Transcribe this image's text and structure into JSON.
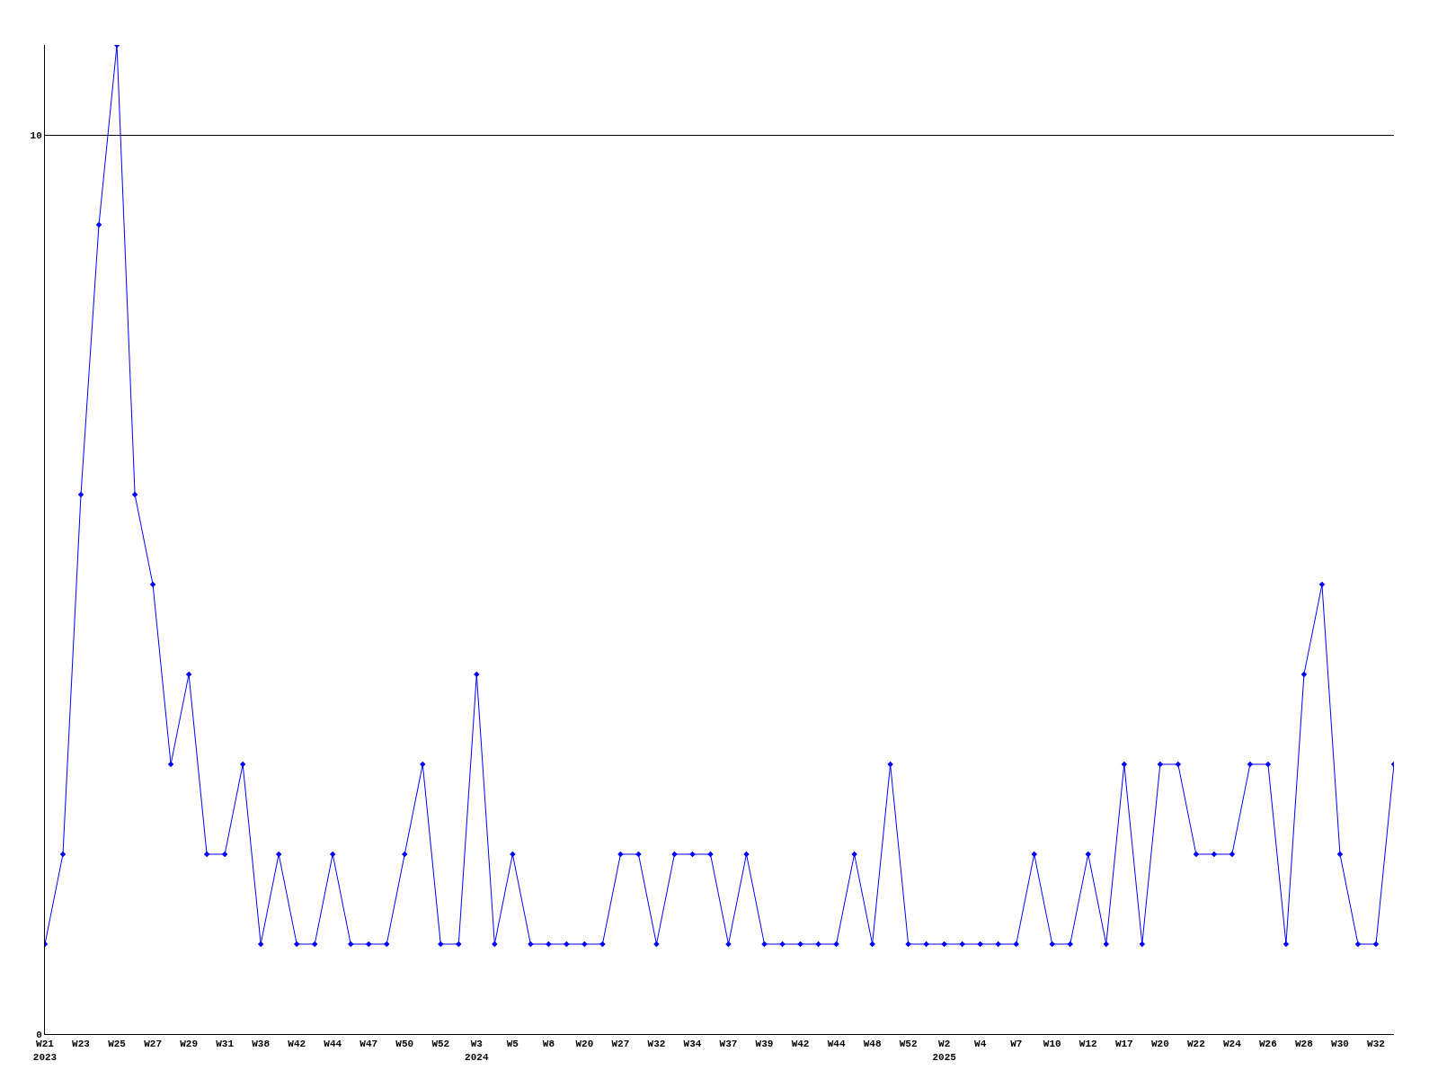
{
  "chart_data": {
    "type": "line",
    "categories": [
      "W21\n2023",
      null,
      "W23",
      null,
      "W25",
      null,
      "W27",
      null,
      "W29",
      null,
      "W31",
      null,
      "W38",
      null,
      "W42",
      null,
      "W44",
      null,
      "W47",
      null,
      "W50",
      null,
      "W52",
      null,
      "W3\n2024",
      null,
      "W5",
      null,
      "W8",
      null,
      "W20",
      null,
      "W27",
      null,
      "W32",
      null,
      "W34",
      null,
      "W37",
      null,
      "W39",
      null,
      "W42",
      null,
      "W44",
      null,
      "W48",
      null,
      "W52",
      null,
      "W2\n2025",
      null,
      "W4",
      null,
      "W7",
      null,
      "W10",
      null,
      "W12",
      null,
      "W17",
      null,
      "W20",
      null,
      "W22",
      null,
      "W24",
      null,
      "W26",
      null,
      "W28",
      null,
      "W30",
      null,
      "W32",
      null
    ],
    "series": [
      {
        "color": "#0000ff",
        "values": [
          1,
          2,
          6,
          9,
          11,
          6,
          5,
          3,
          4,
          2,
          2,
          3,
          1,
          2,
          1,
          1,
          2,
          1,
          1,
          1,
          2,
          3,
          1,
          1,
          4,
          1,
          2,
          1,
          1,
          1,
          1,
          1,
          2,
          2,
          1,
          2,
          2,
          2,
          1,
          2,
          1,
          1,
          1,
          1,
          1,
          2,
          1,
          3,
          1,
          1,
          1,
          1,
          1,
          1,
          1,
          2,
          1,
          1,
          2,
          1,
          3,
          1,
          3,
          3,
          2,
          2,
          2,
          3,
          3,
          1,
          4,
          5,
          2,
          1,
          1,
          3
        ]
      }
    ],
    "ylim": [
      0,
      11
    ],
    "yticks": [
      0,
      10
    ],
    "grid": "y",
    "marker": "diamond",
    "line_style": "solid"
  }
}
